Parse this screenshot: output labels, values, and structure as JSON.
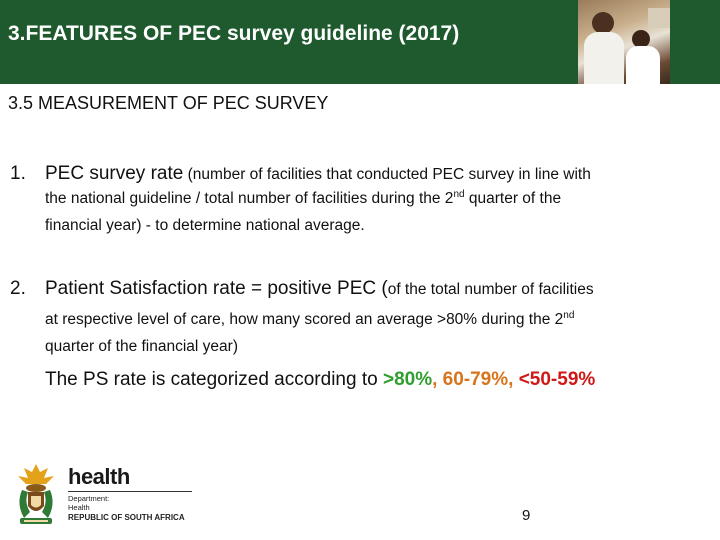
{
  "header": {
    "title": "3.FEATURES OF PEC survey guideline (2017)"
  },
  "subtitle": "3.5 MEASUREMENT OF PEC SURVEY",
  "items": [
    {
      "number": "1.",
      "lead": "PEC survey rate",
      "line1_rest": " (number of facilities that conducted PEC survey in line with",
      "line2_pre": "the national guideline / total number of facilities during the 2",
      "line2_sup": "nd",
      "line2_post": " quarter of the",
      "line3": "financial year)  - to determine national average."
    },
    {
      "number": "2.",
      "lead": "Patient Satisfaction rate = positive PEC (",
      "line1_rest": "of the total number of facilities",
      "line2_pre": "at respective level of care, how many scored an average >80% during the 2",
      "line2_sup": "nd",
      "line3": "quarter of the financial year)"
    }
  ],
  "categories": {
    "intro": "The PS rate is categorized according to ",
    "green": ">80%",
    "orange": ", 60-79%",
    "sep": ",  ",
    "red": "<50-59%"
  },
  "colors": {
    "header_bg": "#1e5a2e",
    "green": "#2e9e2e",
    "orange": "#d9741a",
    "red": "#d01818"
  },
  "logo": {
    "word": "health",
    "dept_line1": "Department:",
    "dept_line2": "Health",
    "country": "REPUBLIC OF SOUTH AFRICA",
    "icon": "coat-of-arms-icon"
  },
  "page_number": "9"
}
